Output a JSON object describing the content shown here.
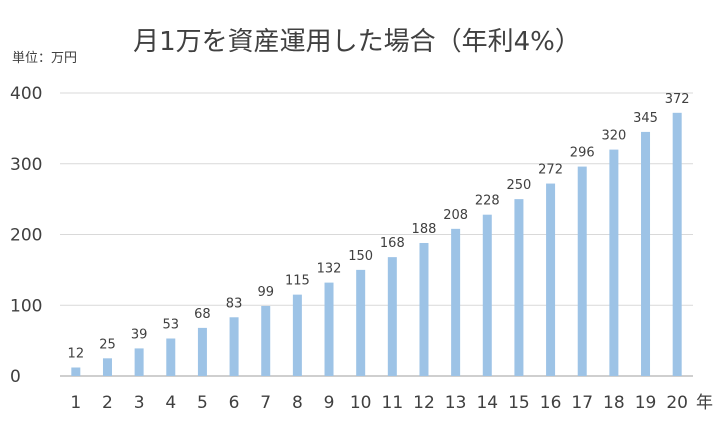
{
  "chart_data": {
    "type": "bar",
    "title": "月1万を資産運用した場合（年利4%）",
    "unit_label": "単位：万円",
    "x_unit": "年",
    "categories": [
      "1",
      "2",
      "3",
      "4",
      "5",
      "6",
      "7",
      "8",
      "9",
      "10",
      "11",
      "12",
      "13",
      "14",
      "15",
      "16",
      "17",
      "18",
      "19",
      "20"
    ],
    "values": [
      12,
      25,
      39,
      53,
      68,
      83,
      99,
      115,
      132,
      150,
      168,
      188,
      208,
      228,
      250,
      272,
      296,
      320,
      345,
      372
    ],
    "ylim": [
      0,
      400
    ],
    "yticks": [
      0,
      100,
      200,
      300,
      400
    ],
    "grid": true,
    "data_labels": true,
    "bar_color": "#9dc3e6",
    "grid_color": "#d9d9d9"
  }
}
